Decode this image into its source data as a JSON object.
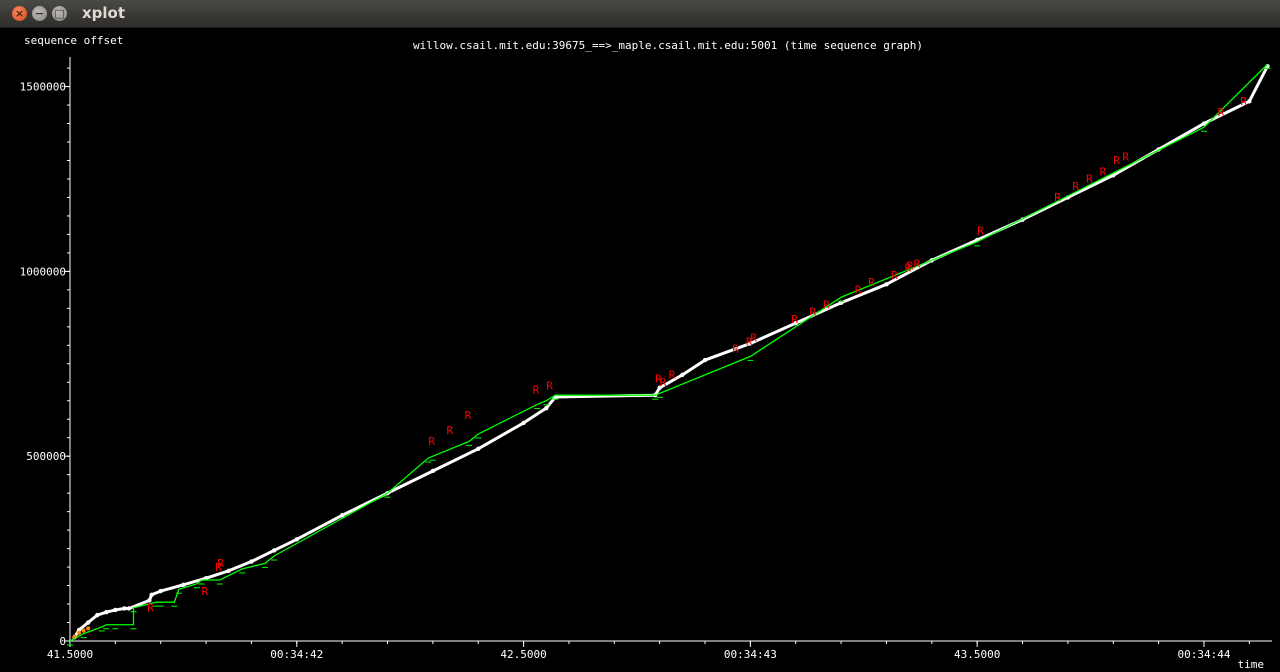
{
  "window": {
    "title": "xplot",
    "close_glyph": "×",
    "minimize_glyph": "−",
    "maximize_glyph": "□"
  },
  "chart_data": {
    "type": "line",
    "title": "willow.csail.mit.edu:39675_==>_maple.csail.mit.edu:5001 (time sequence graph)",
    "xlabel": "time",
    "ylabel": "sequence offset",
    "xlim": [
      41.5,
      44.15
    ],
    "ylim": [
      0,
      1580000
    ],
    "x_ticks": [
      {
        "value": 41.5,
        "label": "41.5000"
      },
      {
        "value": 42.0,
        "label": "00:34:42"
      },
      {
        "value": 42.5,
        "label": "42.5000"
      },
      {
        "value": 43.0,
        "label": "00:34:43"
      },
      {
        "value": 43.5,
        "label": "43.5000"
      },
      {
        "value": 44.0,
        "label": "00:34:44"
      }
    ],
    "y_ticks": [
      {
        "value": 0,
        "label": "0"
      },
      {
        "value": 500000,
        "label": "500000"
      },
      {
        "value": 1000000,
        "label": "1000000"
      },
      {
        "value": 1500000,
        "label": "1500000"
      }
    ],
    "grid": false,
    "colors": {
      "background": "#000000",
      "axes": "#ffffff",
      "data_sent": "#ffffff",
      "ack_line": "#00ff00",
      "retransmit": "#ff0000",
      "early_segments": "#ff8800"
    },
    "series": [
      {
        "role": "data_segments",
        "color": "#ffffff",
        "x": [
          41.51,
          41.52,
          41.54,
          41.56,
          41.58,
          41.6,
          41.62,
          41.63,
          41.675,
          41.68,
          41.7,
          41.75,
          41.8,
          41.85,
          41.9,
          41.95,
          42.0,
          42.1,
          42.2,
          42.3,
          42.4,
          42.5,
          42.55,
          42.57,
          42.79,
          42.8,
          42.85,
          42.9,
          43.0,
          43.1,
          43.2,
          43.3,
          43.4,
          43.5,
          43.6,
          43.7,
          43.8,
          43.9,
          44.0,
          44.1,
          44.14
        ],
        "y": [
          10000,
          30000,
          50000,
          70000,
          78000,
          84000,
          88000,
          88000,
          110000,
          125000,
          135000,
          152000,
          170000,
          190000,
          215000,
          245000,
          275000,
          340000,
          400000,
          460000,
          520000,
          590000,
          630000,
          660000,
          665000,
          685000,
          720000,
          760000,
          805000,
          860000,
          915000,
          965000,
          1030000,
          1085000,
          1140000,
          1200000,
          1260000,
          1330000,
          1400000,
          1460000,
          1555000
        ]
      },
      {
        "role": "ack_line",
        "color": "#00ff00",
        "x": [
          41.5,
          41.53,
          41.57,
          41.58,
          41.6,
          41.64,
          41.64,
          41.69,
          41.7,
          41.73,
          41.74,
          41.78,
          41.79,
          41.83,
          41.88,
          41.93,
          41.95,
          42.2,
          42.29,
          42.3,
          42.38,
          42.4,
          42.53,
          42.55,
          42.57,
          42.79,
          42.8,
          43.0,
          43.2,
          43.5,
          44.0,
          44.14
        ],
        "y": [
          0,
          20000,
          38000,
          44000,
          44000,
          44000,
          90000,
          105000,
          105000,
          105000,
          140000,
          155000,
          165000,
          165000,
          195000,
          210000,
          230000,
          400000,
          495000,
          500000,
          540000,
          560000,
          640000,
          650000,
          665000,
          665000,
          670000,
          770000,
          930000,
          1080000,
          1390000,
          1560000
        ]
      },
      {
        "role": "retransmissions",
        "color": "#ff0000",
        "marker": "R",
        "x": [
          41.67,
          41.79,
          41.82,
          41.825,
          42.29,
          42.33,
          42.37,
          42.52,
          42.55,
          42.79,
          42.8,
          42.82,
          42.96,
          42.99,
          43.0,
          43.09,
          43.13,
          43.16,
          43.23,
          43.26,
          43.31,
          43.34,
          43.345,
          43.36,
          43.5,
          43.67,
          43.71,
          43.74,
          43.77,
          43.8,
          43.82,
          44.03,
          44.08
        ],
        "y": [
          80000,
          125000,
          190000,
          200000,
          530000,
          560000,
          600000,
          670000,
          680000,
          700000,
          690000,
          710000,
          780000,
          800000,
          810000,
          860000,
          880000,
          900000,
          940000,
          960000,
          980000,
          1000000,
          1005000,
          1010000,
          1100000,
          1190000,
          1220000,
          1240000,
          1260000,
          1290000,
          1300000,
          1420000,
          1450000
        ]
      },
      {
        "role": "early_segments",
        "color": "#ff8800",
        "x": [
          41.51,
          41.52,
          41.53,
          41.54
        ],
        "y": [
          12000,
          22000,
          28000,
          34000
        ]
      }
    ]
  }
}
